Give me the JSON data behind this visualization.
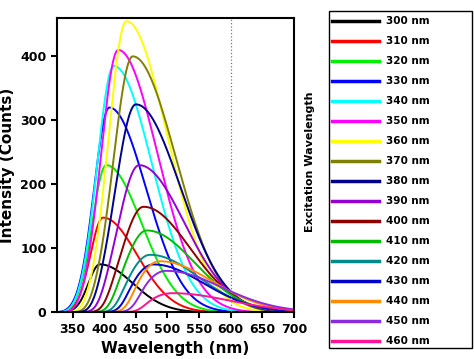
{
  "excitation_wavelengths": [
    300,
    310,
    320,
    330,
    340,
    350,
    360,
    370,
    380,
    390,
    400,
    410,
    420,
    430,
    440,
    450,
    460
  ],
  "colors": [
    "#000000",
    "#ff0000",
    "#00ee00",
    "#0000ff",
    "#00ffff",
    "#ff00ff",
    "#ffff00",
    "#808000",
    "#00008b",
    "#9400d3",
    "#8b0000",
    "#00bb00",
    "#008b8b",
    "#0000cd",
    "#ff8c00",
    "#8a2be2",
    "#ff1493"
  ],
  "peak_intensities": [
    75,
    148,
    230,
    320,
    385,
    410,
    455,
    400,
    325,
    230,
    165,
    128,
    90,
    75,
    80,
    65,
    30
  ],
  "peak_positions": [
    393,
    398,
    403,
    408,
    415,
    422,
    435,
    445,
    450,
    455,
    462,
    467,
    472,
    477,
    487,
    497,
    507
  ],
  "sigma_left": [
    18,
    20,
    22,
    24,
    26,
    27,
    28,
    30,
    32,
    33,
    34,
    35,
    36,
    37,
    39,
    41,
    43
  ],
  "sigma_right": [
    52,
    54,
    56,
    58,
    60,
    62,
    65,
    68,
    70,
    72,
    74,
    76,
    78,
    80,
    84,
    88,
    92
  ],
  "xlabel": "Wavelength (nm)",
  "ylabel": "Intensity (Counts)",
  "legend_title": "Excitation Wavelength",
  "plot_xlim": [
    325,
    600
  ],
  "full_xlim": [
    325,
    700
  ],
  "ylim": [
    0,
    460
  ],
  "xticks": [
    350,
    400,
    450,
    500,
    550,
    600,
    650,
    700
  ],
  "yticks": [
    0,
    100,
    200,
    300,
    400
  ],
  "bg_color": "#ffffff"
}
